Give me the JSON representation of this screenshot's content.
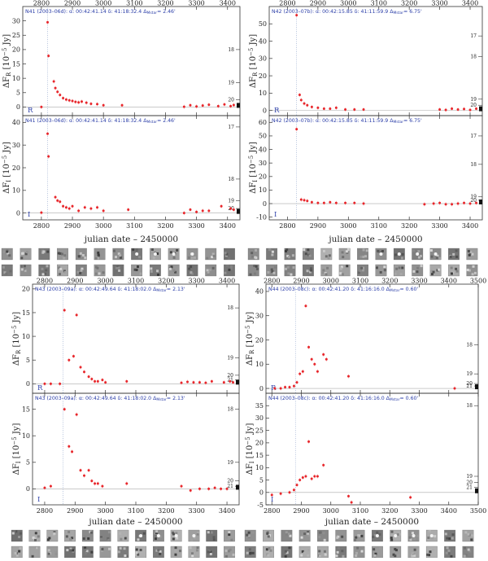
{
  "x_axis_label": "julian date – 2450000",
  "band_labels": {
    "R": "R",
    "I": "I"
  },
  "mag_side_ticks": [
    "17",
    "18",
    "19",
    "20",
    "21"
  ],
  "chart_data": [
    {
      "id": "N41",
      "type": "scatter",
      "info_R": "N41 (2003–06d):   α: 00:42:41.14  δ: 41:18:32.4  Δ",
      "info_I": "N41 (2003–06d):   α: 00:42:41.14  δ: 41:18:32.4  Δ",
      "sep": "2.46'",
      "xlim": [
        2740,
        3440
      ],
      "xticks": [
        2800,
        2900,
        3000,
        3100,
        3200,
        3300,
        3400
      ],
      "peak_date": 2820,
      "panels": [
        {
          "band": "R",
          "ylabel": "ΔF_R [10^-5 Jy]",
          "ylim": [
            -3,
            35
          ],
          "yticks": [
            -5,
            0,
            5,
            10,
            15,
            20,
            25,
            30
          ],
          "mag_ticks": [
            {
              "m": "18",
              "y": 20
            },
            {
              "m": "19",
              "y": 8.5
            },
            {
              "m": "20",
              "y": 2.5
            }
          ],
          "x": [
            2800,
            2820,
            2823,
            2840,
            2845,
            2852,
            2860,
            2870,
            2880,
            2890,
            2900,
            2910,
            2920,
            2930,
            2945,
            2960,
            2980,
            3000,
            3060,
            3260,
            3280,
            3300,
            3320,
            3340,
            3370,
            3390,
            3410,
            3420
          ],
          "y": [
            0,
            29.5,
            17.8,
            8.9,
            6.6,
            5.3,
            4.2,
            3.1,
            2.6,
            2.3,
            2.1,
            1.8,
            1.6,
            1.9,
            1.5,
            1.1,
            1.0,
            0.6,
            0.6,
            0.1,
            0.6,
            0.2,
            0.5,
            0.8,
            0.3,
            0.9,
            0.3,
            0.7
          ]
        },
        {
          "band": "I",
          "ylabel": "ΔF_I [10^-5 Jy]",
          "ylim": [
            -3,
            43
          ],
          "yticks": [
            0,
            10,
            20,
            30,
            40
          ],
          "mag_ticks": [
            {
              "m": "17",
              "y": 38
            },
            {
              "m": "18",
              "y": 15
            },
            {
              "m": "19",
              "y": 5.5
            },
            {
              "m": "20",
              "y": 2
            }
          ],
          "x": [
            2800,
            2820,
            2823,
            2845,
            2852,
            2860,
            2870,
            2880,
            2890,
            2900,
            2920,
            2940,
            2960,
            2980,
            3000,
            3080,
            3260,
            3280,
            3300,
            3320,
            3340,
            3380,
            3410,
            3420
          ],
          "y": [
            0.2,
            35,
            25,
            7,
            5.5,
            5,
            3,
            2.5,
            2,
            3,
            1,
            2.5,
            2,
            2.5,
            1,
            1.5,
            0,
            1.5,
            0.5,
            1,
            1,
            3,
            2,
            1.5
          ]
        }
      ]
    },
    {
      "id": "N42",
      "type": "scatter",
      "info_R": "N42 (2003–07b):   α: 00:42:15.85  δ: 41:11:59.9  Δ",
      "info_I": "N42 (2003–07b):   α: 00:42:15.85  δ: 41:11:59.9  Δ",
      "sep": "6.75'",
      "xlim": [
        2740,
        3440
      ],
      "xticks": [
        2800,
        2900,
        3000,
        3100,
        3200,
        3300,
        3400
      ],
      "peak_date": 2830,
      "panels": [
        {
          "band": "R",
          "ylabel": "ΔF_R [10^-5 Jy]",
          "ylim": [
            -3,
            60
          ],
          "yticks": [
            0,
            10,
            20,
            30,
            40,
            50
          ],
          "mag_ticks": [
            {
              "m": "17",
              "y": 43
            },
            {
              "m": "18",
              "y": 31
            },
            {
              "m": "19",
              "y": 6.5
            },
            {
              "m": "20",
              "y": 3
            }
          ],
          "x": [
            2830,
            2840,
            2845,
            2855,
            2865,
            2880,
            2900,
            2920,
            2940,
            2960,
            2990,
            3020,
            3050,
            3300,
            3320,
            3340,
            3360,
            3380,
            3400,
            3420
          ],
          "y": [
            55,
            9,
            6,
            4,
            3,
            2,
            1.5,
            1,
            1,
            1.5,
            0.5,
            0.5,
            0.5,
            0.5,
            0.3,
            1,
            0.5,
            0.8,
            0.3,
            1
          ]
        },
        {
          "band": "I",
          "ylabel": "ΔF_I [10^-5 Jy]",
          "ylim": [
            -12,
            65
          ],
          "yticks": [
            -10,
            0,
            10,
            20,
            30,
            40,
            50,
            60
          ],
          "mag_ticks": [
            {
              "m": "17",
              "y": 50
            },
            {
              "m": "18",
              "y": 29
            },
            {
              "m": "19",
              "y": 5
            },
            {
              "m": "20",
              "y": 2.5
            }
          ],
          "x": [
            2830,
            2845,
            2855,
            2865,
            2880,
            2900,
            2920,
            2940,
            2960,
            2990,
            3020,
            3050,
            3250,
            3280,
            3300,
            3320,
            3340,
            3360,
            3380,
            3400,
            3420
          ],
          "y": [
            55,
            3,
            2.5,
            2,
            1,
            0.5,
            0.5,
            1,
            0.5,
            0.5,
            0.5,
            0,
            -0.5,
            0,
            0.5,
            -0.5,
            -0.5,
            0,
            0.5,
            0,
            0.5
          ]
        }
      ]
    },
    {
      "id": "N43",
      "type": "scatter",
      "info_R": "N43 (2003–09a):   α: 00:42:49.64  δ: 41:18:02.0  Δ",
      "info_I": "N43 (2003–09a):   α: 00:42:49.64  δ: 41:18:02.0  Δ",
      "sep": "2.13'",
      "xlim": [
        2760,
        3440
      ],
      "xticks": [
        2800,
        2900,
        3000,
        3100,
        3200,
        3300,
        3400
      ],
      "peak_date": 2860,
      "panels": [
        {
          "band": "R",
          "ylabel": "ΔF_R [10^-5 Jy]",
          "ylim": [
            -2,
            21
          ],
          "yticks": [
            0,
            5,
            10,
            15,
            20
          ],
          "mag_ticks": [
            {
              "m": "18",
              "y": 16
            },
            {
              "m": "19",
              "y": 5.5
            },
            {
              "m": "20",
              "y": 1.8
            },
            {
              "m": "21",
              "y": 0.8
            }
          ],
          "x": [
            2800,
            2820,
            2850,
            2865,
            2880,
            2895,
            2905,
            2918,
            2930,
            2945,
            2955,
            2965,
            2975,
            2990,
            3000,
            3070,
            3250,
            3270,
            3290,
            3310,
            3330,
            3350,
            3390,
            3410,
            3420
          ],
          "y": [
            0,
            0,
            0,
            15.5,
            5,
            5.8,
            14.5,
            3.5,
            2.5,
            1.5,
            1,
            0.5,
            0.5,
            0.8,
            0.3,
            0.5,
            0.2,
            0.4,
            0.3,
            0.3,
            0.2,
            0.5,
            0.3,
            0.5,
            0.3
          ]
        },
        {
          "band": "I",
          "ylabel": "ΔF_I [10^-5 Jy]",
          "ylim": [
            -3,
            18
          ],
          "yticks": [
            0,
            5,
            10,
            15
          ],
          "mag_ticks": [
            {
              "m": "18",
              "y": 15
            },
            {
              "m": "19",
              "y": 5
            },
            {
              "m": "20",
              "y": 1.5
            },
            {
              "m": "21",
              "y": 0.5
            }
          ],
          "x": [
            2800,
            2820,
            2865,
            2880,
            2890,
            2905,
            2918,
            2930,
            2945,
            2955,
            2965,
            2975,
            2990,
            3070,
            3250,
            3280,
            3310,
            3340,
            3360,
            3380,
            3400
          ],
          "y": [
            0.2,
            0.5,
            15,
            8,
            7,
            14,
            3.5,
            2.5,
            3.5,
            1.5,
            1,
            1,
            0.5,
            1,
            0.5,
            -0.3,
            0,
            0,
            0.2,
            0,
            0
          ]
        }
      ]
    },
    {
      "id": "N44",
      "type": "scatter",
      "info_R": "N44 (2003–08c):   α: 00:42:41.20  δ: 41:16:16.0  Δ",
      "info_I": "N44 (2003–08c):   α: 00:42:41.20  δ: 41:16:16.0  Δ",
      "sep": "0.60'",
      "xlim": [
        2780,
        3500
      ],
      "xticks": [
        2800,
        2900,
        3000,
        3100,
        3200,
        3300,
        3400,
        3500
      ],
      "peak_date": 2880,
      "panels": [
        {
          "band": "R",
          "ylabel": "ΔF_R [10^-5 Jy]",
          "ylim": [
            -2,
            43
          ],
          "yticks": [
            0,
            10,
            20,
            30,
            40
          ],
          "mag_ticks": [
            {
              "m": "18",
              "y": 18
            },
            {
              "m": "19",
              "y": 6
            },
            {
              "m": "20",
              "y": 2
            },
            {
              "m": "21",
              "y": 1
            }
          ],
          "x": [
            2810,
            2830,
            2845,
            2860,
            2875,
            2885,
            2895,
            2905,
            2915,
            2925,
            2935,
            2945,
            2955,
            2975,
            2985,
            3060,
            3420
          ],
          "y": [
            0,
            0,
            0.5,
            0.5,
            1,
            2.5,
            6,
            7,
            34,
            17,
            12,
            10,
            7,
            14,
            12,
            5,
            0
          ]
        },
        {
          "band": "I",
          "ylabel": "ΔF_I [10^-5 Jy]",
          "ylim": [
            -5,
            40
          ],
          "yticks": [
            -5,
            0,
            5,
            10,
            15,
            20,
            25,
            30,
            35
          ],
          "mag_ticks": [
            {
              "m": "18",
              "y": 35
            },
            {
              "m": "19",
              "y": 6.5
            },
            {
              "m": "20",
              "y": 4
            },
            {
              "m": "21",
              "y": 2
            }
          ],
          "x": [
            2800,
            2830,
            2860,
            2875,
            2885,
            2895,
            2905,
            2915,
            2925,
            2935,
            2945,
            2955,
            2975,
            3060,
            3070,
            3270
          ],
          "y": [
            -1,
            -0.5,
            0,
            1,
            3,
            5,
            6,
            6.5,
            20.5,
            5.5,
            6.5,
            6.5,
            11,
            -1.5,
            -4,
            -2
          ]
        }
      ]
    }
  ]
}
